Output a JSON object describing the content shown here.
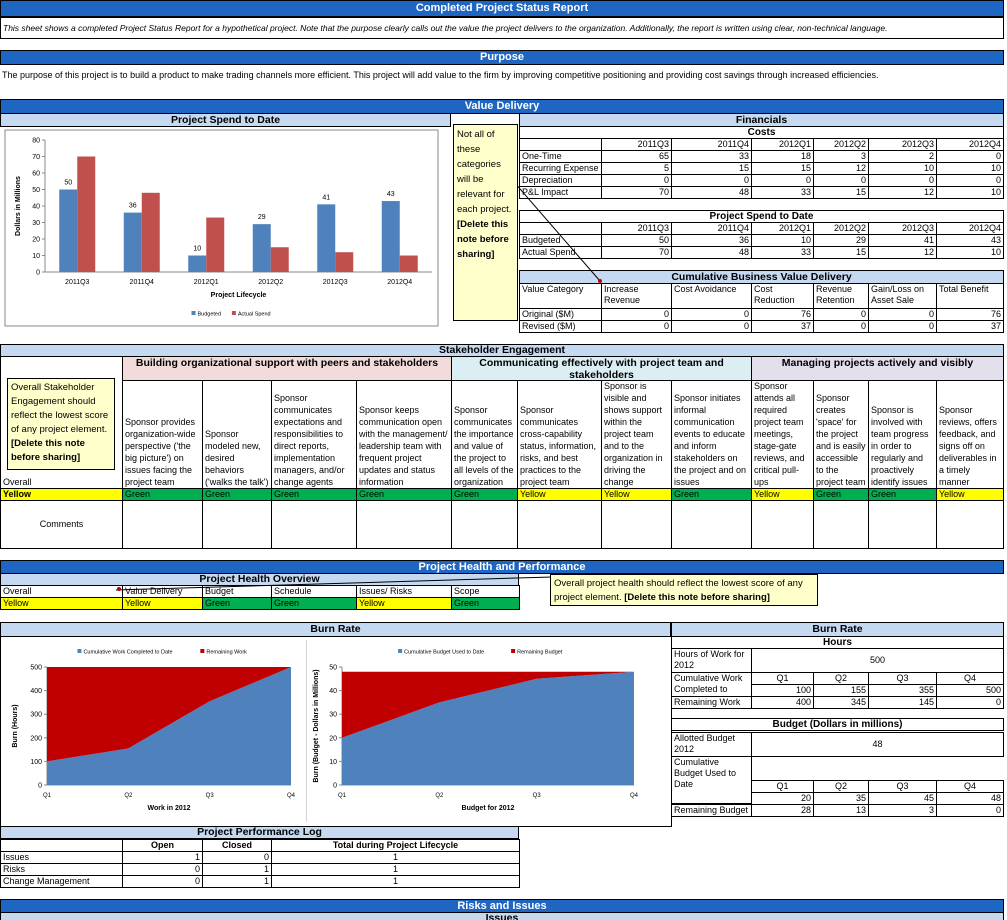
{
  "header": {
    "title": "Completed Project Status Report",
    "intro": "This sheet shows a completed Project Status Report for a hypothetical project. Note that the purpose clearly calls out the value the project delivers to the organization. Additionally, the report is written using clear, non-technical language."
  },
  "purpose": {
    "title": "Purpose",
    "text": "The purpose of this project is to build a product to make trading channels more efficient. This project will add value to the firm by improving competitive positioning and providing cost savings through increased efficiencies."
  },
  "status_colors": {
    "Green": "#00b050",
    "Yellow": "#ffff00"
  },
  "value_delivery": {
    "title": "Value Delivery",
    "spend_chart": {
      "type": "bar",
      "title": "Project Spend to Date",
      "x_label": "Project Lifecycle",
      "y_label": "Dollars in Millions",
      "categories": [
        "2011Q3",
        "2011Q4",
        "2012Q1",
        "2012Q2",
        "2012Q3",
        "2012Q4"
      ],
      "series": [
        {
          "name": "Budgeted",
          "color": "#4f81bd",
          "values": [
            50,
            36,
            10,
            29,
            41,
            43
          ],
          "data_labels": true
        },
        {
          "name": "Actual Spend",
          "color": "#c0504d",
          "values": [
            70,
            48,
            33,
            15,
            12,
            10
          ]
        }
      ],
      "ylim": [
        0,
        80
      ],
      "yticks": [
        0,
        10,
        20,
        30,
        40,
        50,
        60,
        70,
        80
      ]
    },
    "note": "Not all of these categories will be relevant for each project.",
    "note_action": "[Delete this note before sharing]",
    "financials": {
      "title": "Financials",
      "costs": {
        "title": "Costs",
        "columns": [
          "2011Q3",
          "2011Q4",
          "2012Q1",
          "2012Q2",
          "2012Q3",
          "2012Q4"
        ],
        "rows": [
          {
            "label": "One-Time Expense",
            "values": [
              65,
              33,
              18,
              3,
              2,
              0
            ]
          },
          {
            "label": "Recurring Expense",
            "values": [
              5,
              15,
              15,
              12,
              10,
              10
            ]
          },
          {
            "label": "Depreciation",
            "values": [
              0,
              0,
              0,
              0,
              0,
              0
            ]
          },
          {
            "label": "P&L Impact",
            "values": [
              70,
              48,
              33,
              15,
              12,
              10
            ]
          }
        ]
      },
      "spend": {
        "title": "Project Spend to Date",
        "columns": [
          "2011Q3",
          "2011Q4",
          "2012Q1",
          "2012Q2",
          "2012Q3",
          "2012Q4"
        ],
        "rows": [
          {
            "label": "Budgeted",
            "values": [
              50,
              36,
              10,
              29,
              41,
              43
            ]
          },
          {
            "label": "Actual Spend",
            "values": [
              70,
              48,
              33,
              15,
              12,
              10
            ]
          }
        ]
      }
    },
    "benefit": {
      "title": "Cumulative Business Value Delivery",
      "columns": [
        "Value Category",
        "Increase Revenue",
        "Cost Avoidance",
        "Cost Reduction",
        "Revenue Retention",
        "Gain/Loss on Asset Sale",
        "Total Benefit"
      ],
      "rows": [
        {
          "label": "Original ($M)",
          "values": [
            0,
            0,
            76,
            0,
            0,
            76
          ]
        },
        {
          "label": "Revised ($M)",
          "values": [
            0,
            0,
            37,
            0,
            0,
            37
          ]
        }
      ]
    }
  },
  "stakeholder": {
    "title": "Stakeholder Engagement",
    "groups": [
      {
        "title": "Building organizational support with peers and stakeholders",
        "color": "#f2dcdb"
      },
      {
        "title": "Communicating effectively with project team and stakeholders",
        "color": "#dbeef4"
      },
      {
        "title": "Managing projects actively and visibly",
        "color": "#e4dfec"
      }
    ],
    "elements": [
      {
        "text": "Sponsor provides organization-wide perspective ('the big picture') on issues facing the project team",
        "status": "Green"
      },
      {
        "text": "Sponsor modeled new, desired behaviors ('walks the talk')",
        "status": "Green"
      },
      {
        "text": "Sponsor communicates expectations and responsibilities to direct reports, implementation managers, and/or change agents",
        "status": "Green"
      },
      {
        "text": "Sponsor keeps communication open with the management/ leadership team with frequent project updates and status information",
        "status": "Green"
      },
      {
        "text": "Sponsor communicates the importance and value of the project to all levels of the organization",
        "status": "Green"
      },
      {
        "text": "Sponsor communicates cross-capability status, information, risks, and best practices to the project team",
        "status": "Yellow"
      },
      {
        "text": "Sponsor is visible and shows support within the project team and to the organization in driving the change",
        "status": "Yellow"
      },
      {
        "text": "Sponsor initiates informal communication events to educate and inform stakeholders on the project and on issues",
        "status": "Green"
      },
      {
        "text": "Sponsor attends all required project team meetings, stage-gate reviews, and critical pull-ups",
        "status": "Yellow"
      },
      {
        "text": "Sponsor creates 'space' for the project and is easily accessible to the project team",
        "status": "Green"
      },
      {
        "text": "Sponsor is involved with team progress in order to regularly and proactively identify issues",
        "status": "Green"
      },
      {
        "text": "Sponsor reviews, offers feedback, and signs off on deliverables in a timely manner",
        "status": "Yellow"
      }
    ],
    "overall_label": "Overall",
    "overall_status": "Yellow",
    "comments_label": "Comments",
    "note": "Overall Stakeholder Engagement should reflect the lowest score of any project element.",
    "note_action": "[Delete this note before sharing]"
  },
  "health": {
    "title": "Project Health and Performance",
    "overview": {
      "title": "Project Health Overview",
      "columns": [
        "Overall",
        "Value Delivery",
        "Budget",
        "Schedule",
        "Issues/ Risks",
        "Scope"
      ],
      "statuses": [
        "Yellow",
        "Yellow",
        "Green",
        "Green",
        "Yellow",
        "Green"
      ]
    },
    "note": "Overall project health should reflect  the lowest score of any project element.",
    "note_action": "[Delete this note before sharing]",
    "burn_title": "Burn Rate",
    "work_chart": {
      "type": "area",
      "x_label": "Work in 2012",
      "y_label": "Burn (Hours)",
      "categories": [
        "Q1",
        "Q2",
        "Q3",
        "Q4"
      ],
      "series": [
        {
          "name": "Cumulative Work Completed to Date",
          "color": "#4f81bd",
          "values": [
            100,
            155,
            355,
            500
          ]
        },
        {
          "name": "Remaining Work",
          "color": "#c00000",
          "values": [
            400,
            345,
            145,
            0
          ]
        }
      ],
      "ylim": [
        0,
        500
      ],
      "yticks": [
        0,
        100,
        200,
        300,
        400,
        500
      ]
    },
    "budget_chart": {
      "type": "area",
      "x_label": "Budget for 2012",
      "y_label": "Burn (Budget - Dollars in Millions)",
      "categories": [
        "Q1",
        "Q2",
        "Q3",
        "Q4"
      ],
      "series": [
        {
          "name": "Cumulative Budget Used to Date",
          "color": "#4f81bd",
          "values": [
            20,
            35,
            45,
            48
          ]
        },
        {
          "name": "Remaining Budget",
          "color": "#c00000",
          "values": [
            28,
            13,
            3,
            0
          ]
        }
      ],
      "ylim": [
        0,
        50
      ],
      "yticks": [
        0,
        10,
        20,
        30,
        40,
        50
      ]
    },
    "burn_table": {
      "title": "Burn Rate",
      "hours": {
        "title": "Hours",
        "total_label": "Hours of Work for 2012",
        "total": 500,
        "quarters": [
          "Q1",
          "Q2",
          "Q3",
          "Q4"
        ],
        "rows": [
          {
            "label": "Cumulative Work Completed to",
            "values": [
              100,
              155,
              355,
              500
            ]
          },
          {
            "label": "Remaining Work",
            "values": [
              400,
              345,
              145,
              0
            ]
          }
        ]
      },
      "budget": {
        "title": "Budget (Dollars in millions)",
        "total_label": "Allotted Budget 2012",
        "total": 48,
        "quarters": [
          "Q1",
          "Q2",
          "Q3",
          "Q4"
        ],
        "rows": [
          {
            "label": "Cumulative Budget Used to Date",
            "values": [
              20,
              35,
              45,
              48
            ]
          },
          {
            "label": "Remaining Budget",
            "values": [
              28,
              13,
              3,
              0
            ]
          }
        ]
      }
    },
    "log": {
      "title": "Project Performance Log",
      "columns": [
        "Open",
        "Closed",
        "Total during Project Lifecycle"
      ],
      "rows": [
        {
          "label": "Issues",
          "values": [
            1,
            0,
            1
          ]
        },
        {
          "label": "Risks",
          "values": [
            0,
            1,
            1
          ]
        },
        {
          "label": "Change Management",
          "values": [
            0,
            1,
            1
          ]
        }
      ]
    }
  },
  "risks": {
    "title": "Risks and Issues",
    "issues_title": "Issues"
  }
}
